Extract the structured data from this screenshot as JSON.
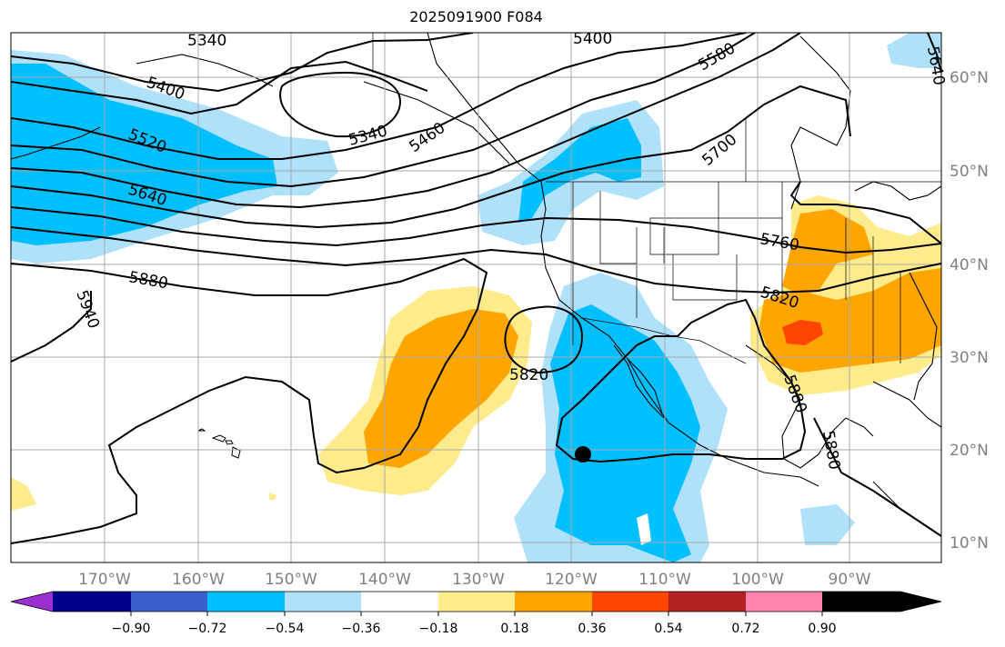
{
  "title": "2025091900 F084",
  "map": {
    "longitude_labels": [
      "170°W",
      "160°W",
      "150°W",
      "140°W",
      "130°W",
      "120°W",
      "110°W",
      "100°W",
      "90°W"
    ],
    "latitude_labels": [
      "60°N",
      "50°N",
      "40°N",
      "30°N",
      "20°N",
      "10°N"
    ],
    "contour_labels": [
      "5340",
      "5400",
      "5400",
      "5580",
      "5340",
      "5460",
      "5520",
      "5640",
      "5700",
      "5760",
      "5880",
      "5940",
      "5820",
      "5820",
      "5880",
      "5880",
      "5640"
    ]
  },
  "colorbar": {
    "ticks": [
      "−0.90",
      "−0.72",
      "−0.54",
      "−0.36",
      "−0.18",
      "0.18",
      "0.36",
      "0.54",
      "0.72",
      "0.90"
    ],
    "colors": [
      "#9b30d0",
      "#00008b",
      "#3a5fcd",
      "#00bfff",
      "#afe1fb",
      "#ffffff",
      "#fdeb8c",
      "#ffa500",
      "#ff4500",
      "#b22222",
      "#ff85b0"
    ]
  },
  "colors": {
    "gridline": "#a9a9a9",
    "contour": "#000000",
    "coast": "#000000",
    "label_gray": "#808080"
  }
}
